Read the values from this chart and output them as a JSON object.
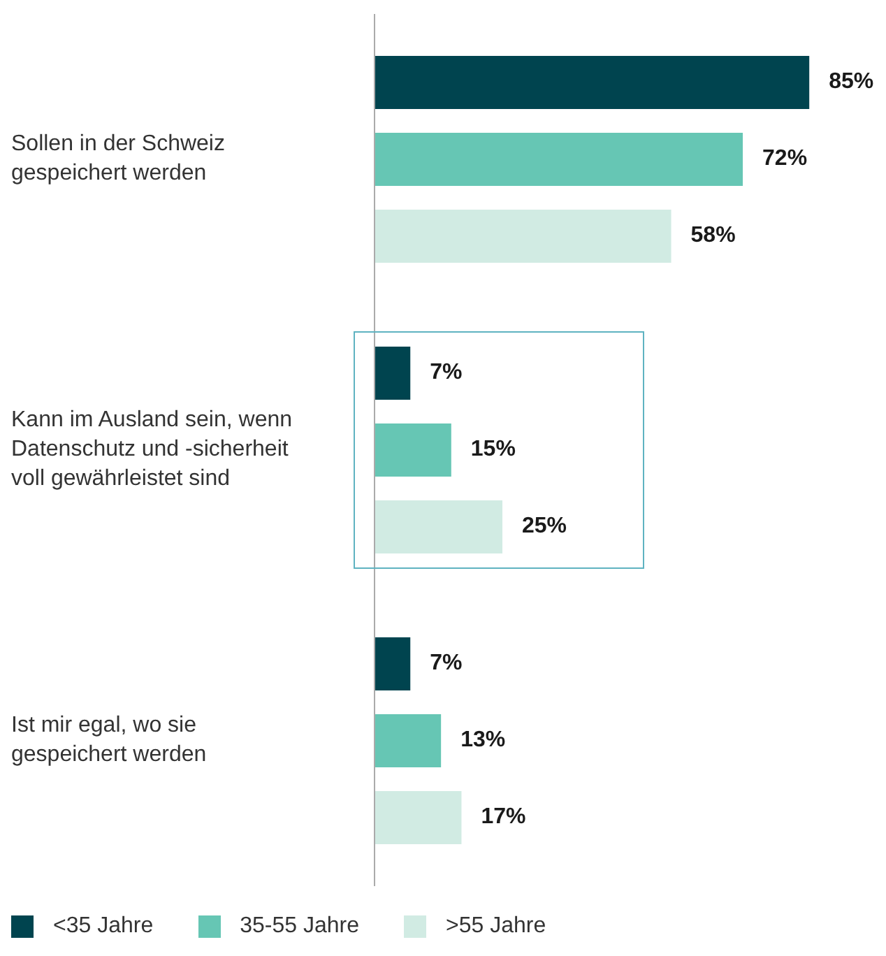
{
  "chart_data": {
    "type": "bar",
    "orientation": "horizontal",
    "categories": [
      "Sollen in der Schweiz gespeichert werden",
      "Kann im Ausland sein, wenn Datenschutz und -sicherheit voll gewährleistet sind",
      "Ist mir egal, wo sie gespeichert werden"
    ],
    "series": [
      {
        "name": "<35 Jahre",
        "color": "#00444f",
        "values": [
          85,
          7,
          7
        ],
        "value_labels": [
          "85%",
          "7%",
          "7%"
        ]
      },
      {
        "name": "35-55 Jahre",
        "color": "#66c6b4",
        "values": [
          72,
          15,
          13
        ],
        "value_labels": [
          "72%",
          "15%",
          "13%"
        ]
      },
      {
        "name": ">55 Jahre",
        "color": "#d1ebe3",
        "values": [
          58,
          25,
          17
        ],
        "value_labels": [
          "58%",
          "25%",
          "17%"
        ]
      }
    ],
    "legend": "bottom left"
  }
}
